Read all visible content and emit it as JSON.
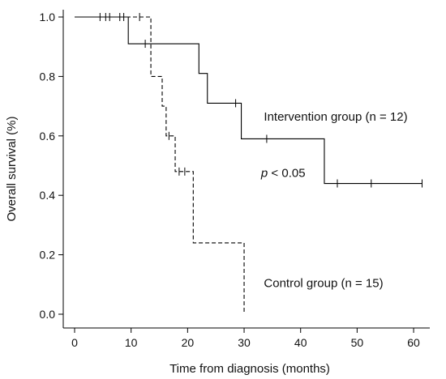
{
  "chart_data": {
    "type": "line",
    "subtype": "kaplan-meier",
    "title": "",
    "xlabel": "Time from diagnosis (months)",
    "ylabel": "Overall survival (%)",
    "xlim": [
      0,
      62
    ],
    "ylim": [
      0,
      1
    ],
    "x_ticks": [
      0,
      10,
      20,
      30,
      40,
      50,
      60
    ],
    "y_ticks": [
      0.0,
      0.2,
      0.4,
      0.6,
      0.8,
      1.0
    ],
    "y_tick_labels": [
      "0.0",
      "0.2",
      "0.4",
      "0.6",
      "0.8",
      "1.0"
    ],
    "grid": false,
    "series": [
      {
        "name": "Intervention group (n = 12)",
        "line_style": "solid",
        "steps": [
          [
            0,
            1.0
          ],
          [
            9.5,
            0.91
          ],
          [
            22,
            0.81
          ],
          [
            23.5,
            0.71
          ],
          [
            29.5,
            0.59
          ],
          [
            44.2,
            0.44
          ],
          [
            61.5,
            0.44
          ]
        ],
        "censored": [
          [
            12.5,
            0.91
          ],
          [
            28.5,
            0.71
          ],
          [
            34,
            0.59
          ],
          [
            46.5,
            0.44
          ],
          [
            52.5,
            0.44
          ],
          [
            61.5,
            0.44
          ]
        ],
        "start_censored": [
          [
            4.5,
            1.0
          ],
          [
            5.5,
            1.0
          ],
          [
            6.2,
            1.0
          ],
          [
            8,
            1.0
          ],
          [
            8.7,
            1.0
          ],
          [
            11.5,
            1.0
          ]
        ]
      },
      {
        "name": "Control group (n = 15)",
        "line_style": "dashed",
        "steps": [
          [
            0,
            1.0
          ],
          [
            13.5,
            0.8
          ],
          [
            15.5,
            0.7
          ],
          [
            16.2,
            0.6
          ],
          [
            17.8,
            0.48
          ],
          [
            21,
            0.24
          ],
          [
            30,
            0.0
          ]
        ],
        "censored": [
          [
            16.7,
            0.6
          ],
          [
            18.5,
            0.48
          ],
          [
            19.5,
            0.48
          ]
        ]
      }
    ],
    "annotations": [
      {
        "text": "Intervention group (n = 12)",
        "x": 33.5,
        "y": 0.665
      },
      {
        "text": "p < 0.05",
        "x": 33,
        "y": 0.475
      },
      {
        "text": "Control group (n = 15)",
        "x": 33.5,
        "y": 0.105
      }
    ],
    "p_label": {
      "italic": "p",
      "rest": " < 0.05"
    }
  }
}
